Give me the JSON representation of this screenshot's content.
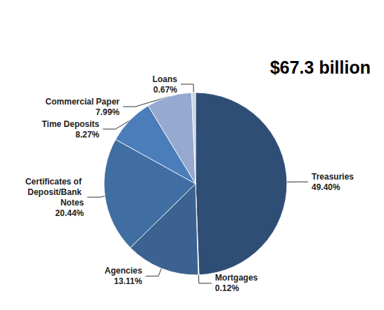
{
  "chart_data": {
    "type": "pie",
    "title": "$67.3 billion",
    "categories": [
      "Treasuries",
      "Mortgages",
      "Agencies",
      "Certificates of Deposit/Bank Notes",
      "Time Deposits",
      "Commercial Paper",
      "Loans"
    ],
    "values": [
      49.4,
      0.12,
      13.11,
      20.44,
      8.27,
      7.99,
      0.67
    ],
    "value_labels": [
      "49.40%",
      "0.12%",
      "13.11%",
      "20.44%",
      "8.27%",
      "7.99%",
      "0.67%"
    ],
    "colors": [
      "#2f4e76",
      "#c3cde0",
      "#3b6291",
      "#416ea2",
      "#4b7dba",
      "#96a9cf",
      "#c9d3e5"
    ],
    "data_labels": true
  }
}
